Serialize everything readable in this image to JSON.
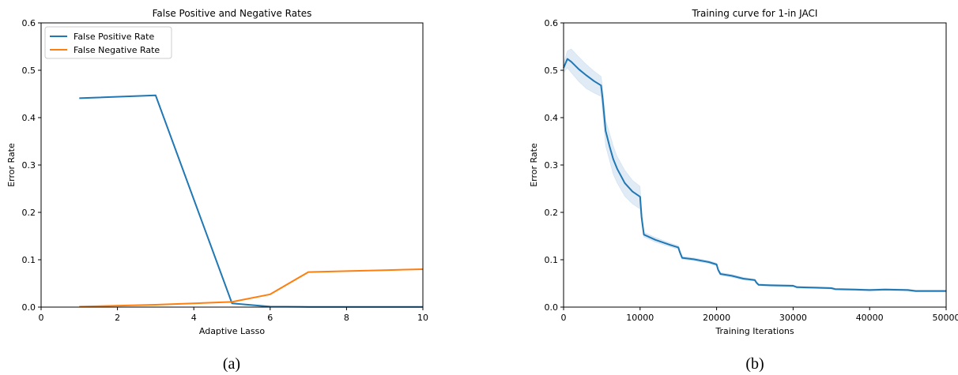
{
  "captions": {
    "left": "(a)",
    "right": "(b)"
  },
  "colors": {
    "blue": "#1f77b4",
    "orange": "#ff7f0e",
    "band": "#c6dbef"
  },
  "chart_data": [
    {
      "type": "line",
      "title": "False Positive and Negative Rates",
      "xlabel": "Adaptive Lasso",
      "ylabel": "Error Rate",
      "xlim": [
        0,
        10
      ],
      "ylim": [
        0,
        0.6
      ],
      "xticks": [
        0,
        2,
        4,
        6,
        8,
        10
      ],
      "yticks": [
        0.0,
        0.1,
        0.2,
        0.3,
        0.4,
        0.5,
        0.6
      ],
      "grid": false,
      "legend": "top-left",
      "series": [
        {
          "name": "False Positive Rate",
          "color": "#1f77b4",
          "x": [
            1,
            3,
            5,
            6,
            7,
            8,
            9,
            10
          ],
          "y": [
            0.441,
            0.447,
            0.008,
            0.001,
            0.0005,
            0.0005,
            0.0005,
            0.0005
          ]
        },
        {
          "name": "False Negative Rate",
          "color": "#ff7f0e",
          "x": [
            1,
            3,
            5,
            6,
            7,
            8,
            9,
            10
          ],
          "y": [
            0.001,
            0.005,
            0.011,
            0.027,
            0.074,
            0.076,
            0.078,
            0.08
          ]
        }
      ]
    },
    {
      "type": "line",
      "title": "Training curve for 1-in   JACI",
      "xlabel": "Training Iterations",
      "ylabel": "Error Rate",
      "xlim": [
        0,
        50000
      ],
      "ylim": [
        0,
        0.6
      ],
      "xticks": [
        0,
        10000,
        20000,
        30000,
        40000,
        50000
      ],
      "yticks": [
        0.0,
        0.1,
        0.2,
        0.3,
        0.4,
        0.5,
        0.6
      ],
      "grid": false,
      "series": [
        {
          "color": "#1f77b4",
          "x": [
            0,
            500,
            1000,
            2000,
            3000,
            4000,
            4900,
            5100,
            5500,
            6000,
            6500,
            7000,
            8000,
            9000,
            10000,
            10200,
            10500,
            12000,
            14000,
            15000,
            15200,
            15500,
            17000,
            19000,
            20000,
            20200,
            20500,
            22000,
            23500,
            25000,
            25200,
            25500,
            27000,
            30000,
            30500,
            33000,
            35000,
            35500,
            38000,
            40000,
            42000,
            45000,
            46000,
            48000,
            50000
          ],
          "y": [
            0.505,
            0.524,
            0.518,
            0.502,
            0.489,
            0.477,
            0.468,
            0.44,
            0.372,
            0.34,
            0.312,
            0.292,
            0.262,
            0.244,
            0.233,
            0.19,
            0.153,
            0.142,
            0.131,
            0.126,
            0.116,
            0.104,
            0.101,
            0.095,
            0.09,
            0.079,
            0.07,
            0.066,
            0.06,
            0.057,
            0.052,
            0.047,
            0.046,
            0.045,
            0.042,
            0.041,
            0.04,
            0.038,
            0.037,
            0.036,
            0.037,
            0.036,
            0.034,
            0.034,
            0.034
          ],
          "lower": [
            0.495,
            0.505,
            0.495,
            0.476,
            0.461,
            0.452,
            0.445,
            0.41,
            0.34,
            0.31,
            0.28,
            0.262,
            0.234,
            0.218,
            0.207,
            0.175,
            0.148,
            0.137,
            0.127,
            0.122,
            0.112,
            0.101,
            0.098,
            0.092,
            0.087,
            0.075,
            0.067,
            0.063,
            0.057,
            0.055,
            0.049,
            0.045,
            0.044,
            0.043,
            0.04,
            0.039,
            0.038,
            0.036,
            0.035,
            0.034,
            0.035,
            0.034,
            0.032,
            0.032,
            0.032
          ],
          "upper": [
            0.515,
            0.541,
            0.545,
            0.528,
            0.512,
            0.498,
            0.487,
            0.465,
            0.395,
            0.368,
            0.34,
            0.318,
            0.289,
            0.268,
            0.255,
            0.2,
            0.158,
            0.147,
            0.135,
            0.13,
            0.12,
            0.107,
            0.104,
            0.098,
            0.093,
            0.082,
            0.073,
            0.069,
            0.063,
            0.059,
            0.054,
            0.049,
            0.048,
            0.047,
            0.044,
            0.043,
            0.042,
            0.04,
            0.039,
            0.038,
            0.039,
            0.038,
            0.036,
            0.036,
            0.036
          ]
        }
      ]
    }
  ]
}
